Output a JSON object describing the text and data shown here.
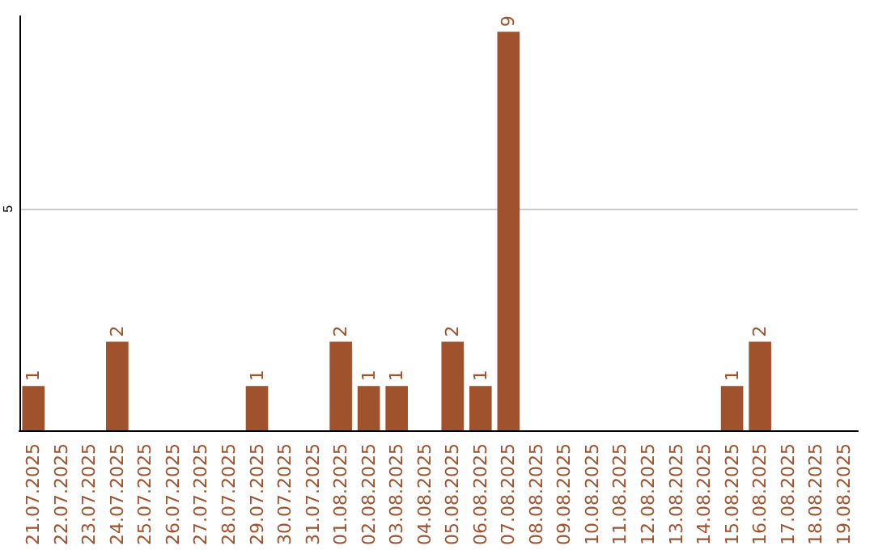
{
  "chart_data": {
    "type": "bar",
    "categories": [
      "21.07.2025",
      "22.07.2025",
      "23.07.2025",
      "24.07.2025",
      "25.07.2025",
      "26.07.2025",
      "27.07.2025",
      "28.07.2025",
      "29.07.2025",
      "30.07.2025",
      "31.07.2025",
      "01.08.2025",
      "02.08.2025",
      "03.08.2025",
      "04.08.2025",
      "05.08.2025",
      "06.08.2025",
      "07.08.2025",
      "08.08.2025",
      "09.08.2025",
      "10.08.2025",
      "11.08.2025",
      "12.08.2025",
      "13.08.2025",
      "14.08.2025",
      "15.08.2025",
      "16.08.2025",
      "17.08.2025",
      "18.08.2025",
      "19.08.2025"
    ],
    "values": [
      1,
      0,
      0,
      2,
      0,
      0,
      0,
      0,
      1,
      0,
      0,
      2,
      1,
      1,
      0,
      2,
      1,
      9,
      0,
      0,
      0,
      0,
      0,
      0,
      0,
      1,
      2,
      0,
      0,
      0
    ],
    "value_labels": [
      "1",
      null,
      null,
      "2",
      null,
      null,
      null,
      null,
      "1",
      null,
      null,
      "2",
      "1",
      "1",
      null,
      "2",
      "1",
      "9",
      null,
      null,
      null,
      null,
      null,
      null,
      null,
      "1",
      "2",
      null,
      null,
      null
    ],
    "color": "#a0522d",
    "ylim": [
      0,
      9.35
    ],
    "yticks": [
      {
        "value": 0,
        "label": null
      },
      5
    ],
    "grid": "y"
  }
}
